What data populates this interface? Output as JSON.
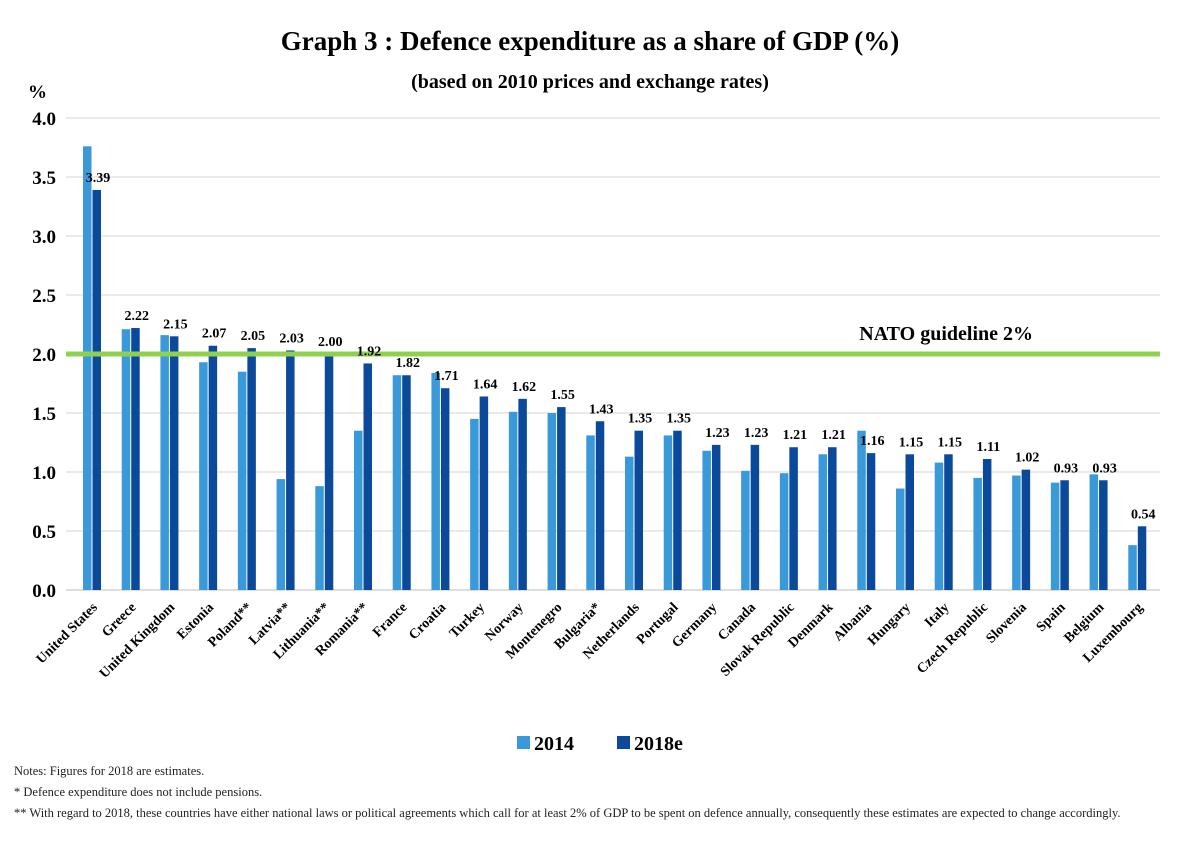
{
  "chart_data": {
    "type": "bar",
    "title": "Graph 3 : Defence expenditure as a share of GDP (%)",
    "subtitle": "(based on 2010 prices and exchange rates)",
    "ylabel": "%",
    "ylim": [
      0,
      4.0
    ],
    "yticks": [
      "0.0",
      "0.5",
      "1.0",
      "1.5",
      "2.0",
      "2.5",
      "3.0",
      "3.5",
      "4.0"
    ],
    "grid": true,
    "legend_position": "bottom",
    "categories": [
      "United States",
      "Greece",
      "United Kingdom",
      "Estonia",
      "Poland**",
      "Latvia**",
      "Lithuania**",
      "Romania**",
      "France",
      "Croatia",
      "Turkey",
      "Norway",
      "Montenegro",
      "Bulgaria*",
      "Netherlands",
      "Portugal",
      "Germany",
      "Canada",
      "Slovak Republic",
      "Denmark",
      "Albania",
      "Hungary",
      "Italy",
      "Czech Republic",
      "Slovenia",
      "Spain",
      "Belgium",
      "Luxembourg"
    ],
    "series": [
      {
        "name": "2014",
        "color": "#3a9ad9",
        "values": [
          3.76,
          2.21,
          2.16,
          1.93,
          1.85,
          0.94,
          0.88,
          1.35,
          1.82,
          1.84,
          1.45,
          1.51,
          1.5,
          1.31,
          1.13,
          1.31,
          1.18,
          1.01,
          0.99,
          1.15,
          1.35,
          0.86,
          1.08,
          0.95,
          0.97,
          0.91,
          0.98,
          0.38
        ]
      },
      {
        "name": "2018e",
        "color": "#0b4a9a",
        "values": [
          3.39,
          2.22,
          2.15,
          2.07,
          2.05,
          2.03,
          2.0,
          1.92,
          1.82,
          1.71,
          1.64,
          1.62,
          1.55,
          1.43,
          1.35,
          1.35,
          1.23,
          1.23,
          1.21,
          1.21,
          1.16,
          1.15,
          1.15,
          1.11,
          1.02,
          0.93,
          0.93,
          0.54
        ]
      }
    ],
    "data_labels": [
      "3.39",
      "2.22",
      "2.15",
      "2.07",
      "2.05",
      "2.03",
      "2.00",
      "1.92",
      "1.82",
      "1.71",
      "1.64",
      "1.62",
      "1.55",
      "1.43",
      "1.35",
      "1.35",
      "1.23",
      "1.23",
      "1.21",
      "1.21",
      "1.16",
      "1.15",
      "1.15",
      "1.11",
      "1.02",
      "0.93",
      "0.93",
      "0.54"
    ],
    "reference_line": {
      "value": 2.0,
      "label": "NATO guideline 2%",
      "color": "#8fd14f"
    }
  },
  "notes": [
    "Notes: Figures for 2018 are estimates.",
    "*   Defence expenditure does not include pensions.",
    "**  With regard to 2018, these countries have either national laws or political agreements which call for at least 2% of GDP to be spent on defence annually, consequently these estimates are expected to change accordingly."
  ]
}
